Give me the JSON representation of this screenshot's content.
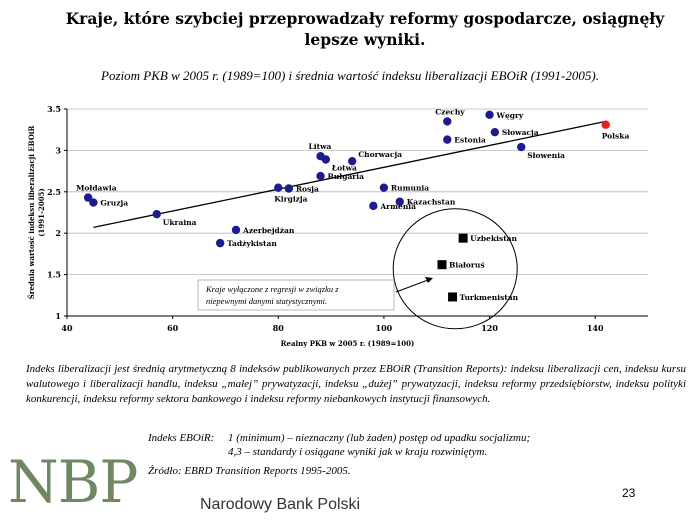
{
  "slide": {
    "title": "Kraje, które szybciej przeprowadzały reformy gospodarcze, osiągnęły lepsze wyniki.",
    "subtitle": "Poziom PKB w 2005 r. (1989=100) i średnia wartość indeksu liberalizacji EBOiR (1991-2005).",
    "note": "Indeks liberalizacji jest średnią arytmetyczną 8 indeksów publikowanych przez EBOiR (Transition Reports): indeksu liberalizacji cen, indeksu kursu walutowego i liberalizacji handlu, indeksu „małej” prywatyzacji, indeksu „dużej” prywatyzacji, indeksu reformy przedsiębiorstw, indeksu polityki konkurencji, indeksu reformy sektora bankowego i indeksu reformy niebankowych instytucji finansowych.",
    "index_label": "Indeks EBOiR:",
    "index_line1": "1 (minimum) – nieznaczny (lub żaden) postęp od upadku socjalizmu;",
    "index_line2": "4,3 – standardy i osiągane wyniki jak w kraju rozwiniętym.",
    "source": "Źródło: EBRD Transition Reports 1995-2005.",
    "logo_text": "NBP",
    "logo_full": "Narodowy Bank Polski",
    "page_number": "23"
  },
  "chart_data": {
    "type": "scatter",
    "xlabel": "Realny PKB w 2005 r. (1989=100)",
    "ylabel_line1": "Średnia wartość indeksu liberalizacji EBOiR",
    "ylabel_line2": "(1991-2005)",
    "xlim": [
      40,
      150
    ],
    "ylim": [
      1,
      3.5
    ],
    "xticks": [
      40,
      60,
      80,
      100,
      120,
      140
    ],
    "yticks": [
      1,
      1.5,
      2,
      2.5,
      3,
      3.5
    ],
    "grid": "horizontal",
    "colors": {
      "point": "#1c1c8c",
      "highlight": "#e8201a",
      "excluded": "#000000",
      "trend": "#000000",
      "grid": "#b8b8b8"
    },
    "points": [
      {
        "label": "Czechy",
        "x": 112,
        "y": 3.35,
        "label_pos": "above"
      },
      {
        "label": "Węgry",
        "x": 120,
        "y": 3.43,
        "label_pos": "right"
      },
      {
        "label": "Słowacja",
        "x": 121,
        "y": 3.22,
        "label_pos": "right"
      },
      {
        "label": "Estonia",
        "x": 112,
        "y": 3.13,
        "label_pos": "right"
      },
      {
        "label": "Słowenia",
        "x": 126,
        "y": 3.04,
        "label_pos": "below-right"
      },
      {
        "label": "Polska",
        "x": 142,
        "y": 3.31,
        "label_pos": "below",
        "highlight": true
      },
      {
        "label": "Litwa",
        "x": 88,
        "y": 2.93,
        "label_pos": "above"
      },
      {
        "label": "Łotwa",
        "x": 89,
        "y": 2.89,
        "label_pos": "below-right"
      },
      {
        "label": "Chorwacja",
        "x": 94,
        "y": 2.87,
        "label_pos": "above-right"
      },
      {
        "label": "Bułgaria",
        "x": 88,
        "y": 2.69,
        "label_pos": "right"
      },
      {
        "label": "Rumunia",
        "x": 100,
        "y": 2.55,
        "label_pos": "right"
      },
      {
        "label": "Kazachstan",
        "x": 103,
        "y": 2.38,
        "label_pos": "right"
      },
      {
        "label": "Armenia",
        "x": 98,
        "y": 2.33,
        "label_pos": "right"
      },
      {
        "label": "Rosja",
        "x": 82,
        "y": 2.54,
        "label_pos": "right"
      },
      {
        "label": "Kirgizja",
        "x": 80,
        "y": 2.55,
        "label_pos": "below"
      },
      {
        "label": "Mołdawia",
        "x": 44,
        "y": 2.43,
        "label_pos": "above"
      },
      {
        "label": "Gruzja",
        "x": 45,
        "y": 2.37,
        "label_pos": "right"
      },
      {
        "label": "Ukraina",
        "x": 57,
        "y": 2.23,
        "label_pos": "below-right"
      },
      {
        "label": "Azerbejdżan",
        "x": 72,
        "y": 2.04,
        "label_pos": "right"
      },
      {
        "label": "Tadżykistan",
        "x": 69,
        "y": 1.88,
        "label_pos": "right"
      }
    ],
    "excluded": [
      {
        "label": "Uzbekistan",
        "x": 115,
        "y": 1.94
      },
      {
        "label": "Białoruś",
        "x": 111,
        "y": 1.62
      },
      {
        "label": "Turkmenistan",
        "x": 113,
        "y": 1.23
      }
    ],
    "trendline": {
      "x": [
        45,
        142
      ],
      "y": [
        2.07,
        3.35
      ]
    },
    "annotation": {
      "line1": "Kraje wyłączone z regresji w związku z",
      "line2": "niepewnymi danymi statystycznymi."
    }
  }
}
